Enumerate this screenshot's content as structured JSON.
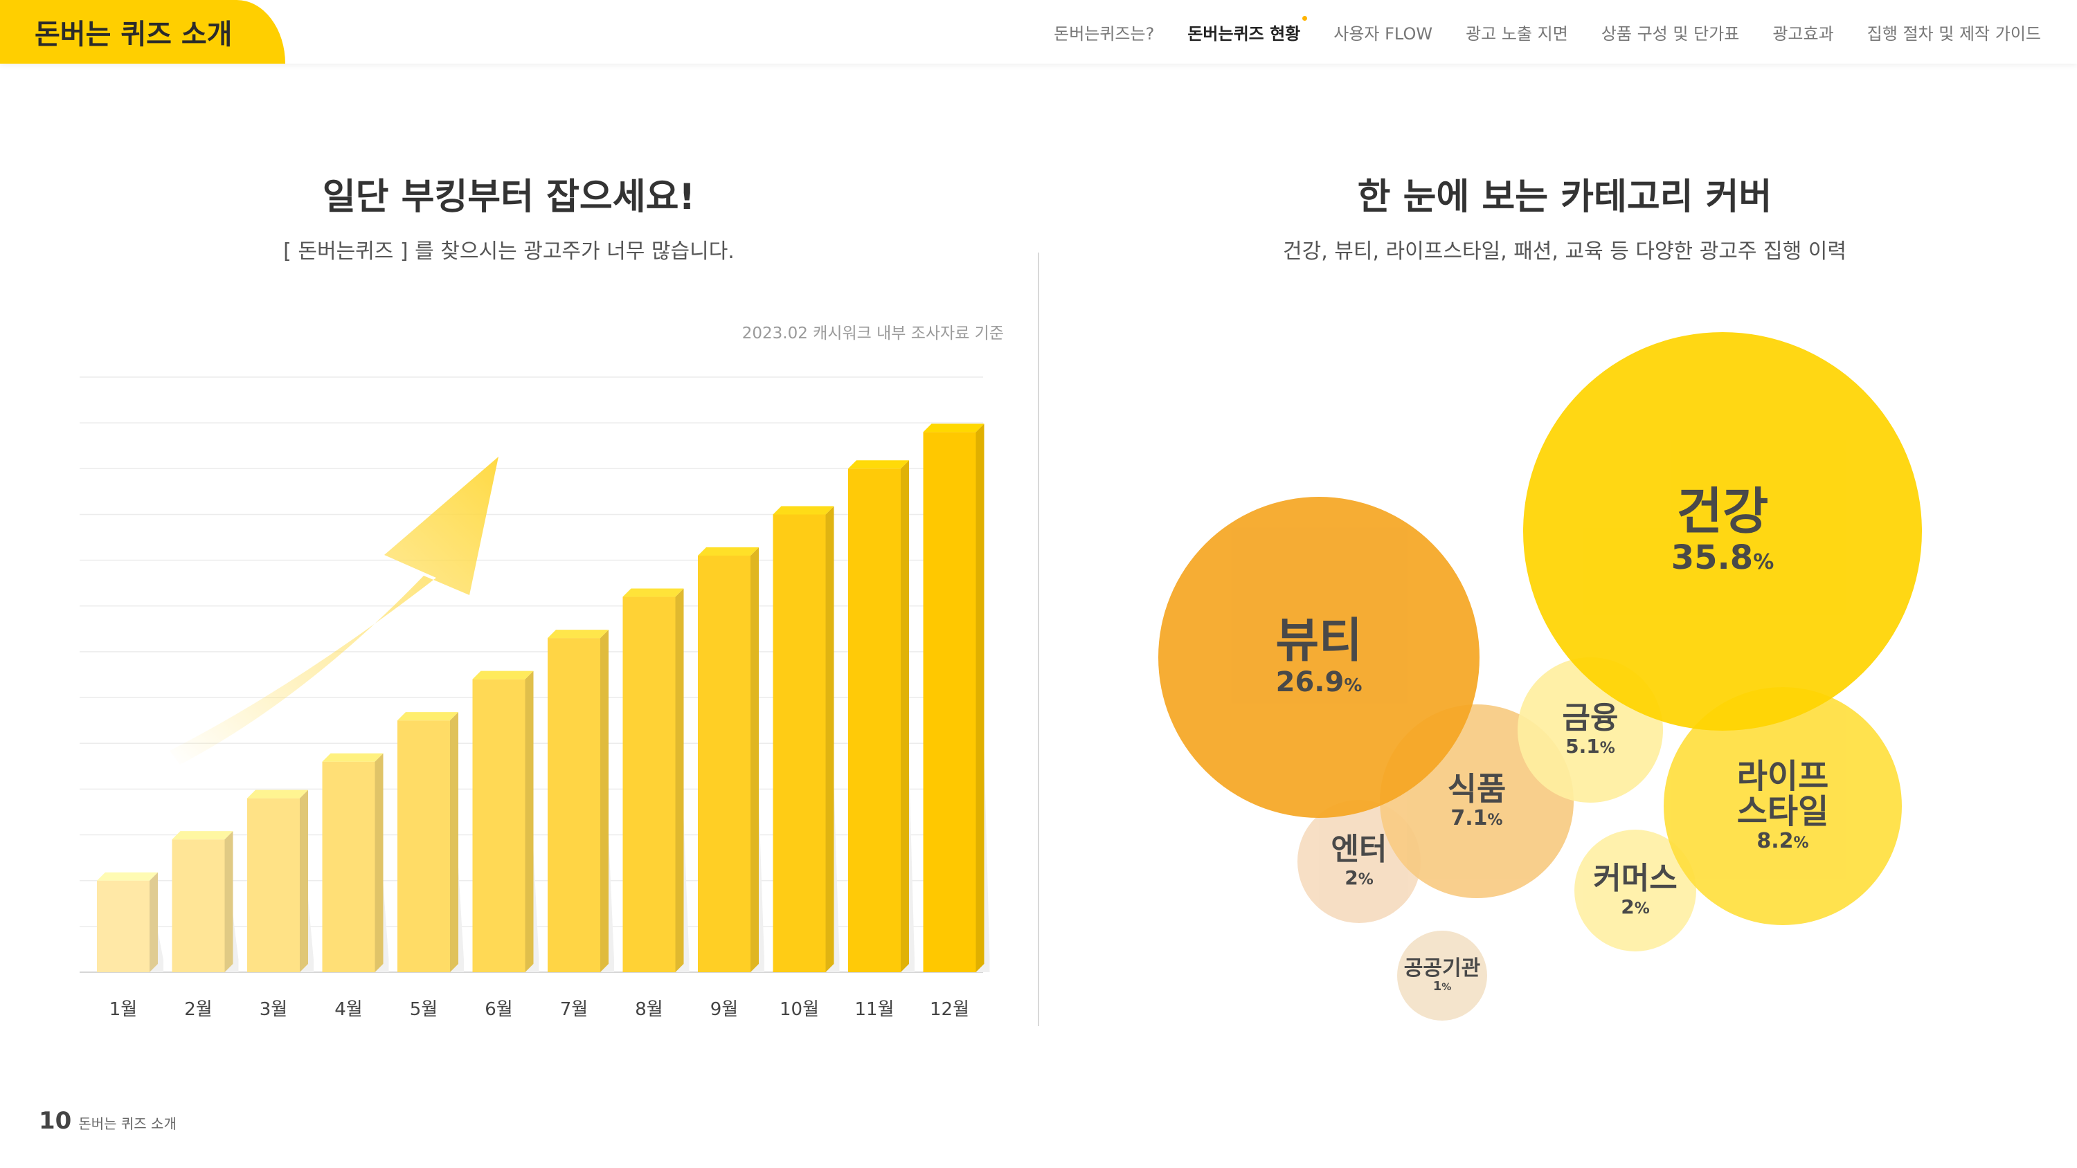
{
  "header": {
    "section_title": "돈버는 퀴즈 소개",
    "nav": [
      {
        "label": "돈버는퀴즈는?",
        "active": false
      },
      {
        "label": "돈버는퀴즈 현황",
        "active": true
      },
      {
        "label": "사용자 FLOW",
        "active": false
      },
      {
        "label": "광고 노출 지면",
        "active": false
      },
      {
        "label": "상품 구성 및 단가표",
        "active": false
      },
      {
        "label": "광고효과",
        "active": false
      },
      {
        "label": "집행 절차 및 제작 가이드",
        "active": false
      }
    ]
  },
  "left": {
    "title": "일단 부킹부터 잡으세요!",
    "subtitle": "[ 돈버는퀴즈 ] 를 찾으시는 광고주가 너무 많습니다.",
    "source": "2023.02 캐시워크 내부 조사자료 기준"
  },
  "right": {
    "title": "한 눈에 보는 카테고리 커버",
    "subtitle": "건강, 뷰티, 라이프스타일, 패션, 교육 등 다양한 광고주 집행 이력"
  },
  "footer": {
    "page_number": "10",
    "page_label": "돈버는 퀴즈 소개"
  },
  "colors": {
    "accent": "#ffcf00",
    "arrow": "#ffe066"
  },
  "chart_data": [
    {
      "type": "bar",
      "categories": [
        "1월",
        "2월",
        "3월",
        "4월",
        "5월",
        "6월",
        "7월",
        "8월",
        "9월",
        "10월",
        "11월",
        "12월"
      ],
      "values": [
        2,
        2.9,
        3.8,
        4.6,
        5.5,
        6.4,
        7.3,
        8.2,
        9.1,
        10,
        11,
        11.8
      ],
      "ylim": [
        0,
        13
      ],
      "grid": true,
      "colors": [
        "#ffe8a6",
        "#ffe596",
        "#ffe286",
        "#ffdf76",
        "#ffdc66",
        "#ffd955",
        "#ffd545",
        "#ffd235",
        "#ffcf25",
        "#ffcc15",
        "#ffca08",
        "#ffc800"
      ],
      "title": "",
      "xlabel": "",
      "ylabel": ""
    },
    {
      "type": "bubble",
      "items": [
        {
          "label": "건강",
          "value": 35.8,
          "display": "35.8",
          "unit": "%",
          "color": "#ffd400"
        },
        {
          "label": "뷰티",
          "value": 26.9,
          "display": "26.9",
          "unit": "%",
          "color": "#f5a623"
        },
        {
          "label": "라이프\n스타일",
          "value": 8.2,
          "display": "8.2",
          "unit": "%",
          "color": "#ffdf3f"
        },
        {
          "label": "식품",
          "value": 7.1,
          "display": "7.1",
          "unit": "%",
          "color": "#f8cb83"
        },
        {
          "label": "금융",
          "value": 5.1,
          "display": "5.1",
          "unit": "%",
          "color": "#ffefa0"
        },
        {
          "label": "엔터",
          "value": 2,
          "display": "2",
          "unit": "%",
          "color": "#f6dcc0"
        },
        {
          "label": "커머스",
          "value": 2,
          "display": "2",
          "unit": "%",
          "color": "#fff0a6"
        },
        {
          "label": "공공기관",
          "value": 1,
          "display": "1",
          "unit": "%",
          "color": "#f4e2c8"
        }
      ]
    }
  ]
}
